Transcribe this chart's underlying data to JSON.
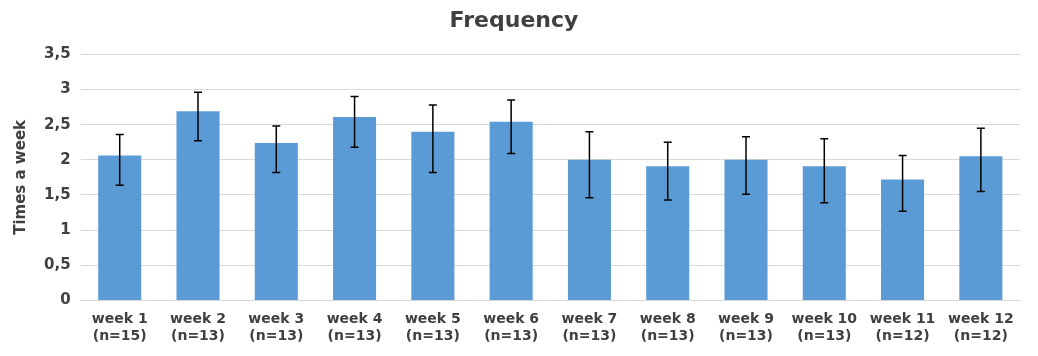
{
  "chart_data": {
    "type": "bar",
    "title": "Frequency",
    "ylabel": "Times a week",
    "categories": [
      "week 1\n(n=15)",
      "week 2\n(n=13)",
      "week 3\n(n=13)",
      "week 4\n(n=13)",
      "week 5\n(n=13)",
      "week 6\n(n=13)",
      "week 7\n(n=13)",
      "week 8\n(n=13)",
      "week 9\n(n=13)",
      "week 10\n(n=13)",
      "week 11\n(n=12)",
      "week 12\n(n=12)"
    ],
    "values": [
      2.06,
      2.69,
      2.24,
      2.61,
      2.4,
      2.54,
      2.0,
      1.91,
      2.0,
      1.91,
      1.72,
      2.05
    ],
    "errors": [
      [
        1.64,
        2.36
      ],
      [
        2.27,
        2.96
      ],
      [
        1.82,
        2.48
      ],
      [
        2.18,
        2.9
      ],
      [
        1.82,
        2.78
      ],
      [
        2.09,
        2.85
      ],
      [
        1.46,
        2.4
      ],
      [
        1.43,
        2.25
      ],
      [
        1.51,
        2.33
      ],
      [
        1.39,
        2.3
      ],
      [
        1.27,
        2.06
      ],
      [
        1.55,
        2.45
      ]
    ],
    "color": "#5b9bd5",
    "ylim": [
      0,
      3.5
    ],
    "yticks": [
      0,
      {
        "value": 0.5,
        "label": "0,5"
      },
      1,
      {
        "value": 1.5,
        "label": "1,5"
      },
      2,
      {
        "value": 2.5,
        "label": "2,5"
      },
      3,
      {
        "value": 3.5,
        "label": "3,5"
      }
    ],
    "grid": "y",
    "legend": false
  }
}
